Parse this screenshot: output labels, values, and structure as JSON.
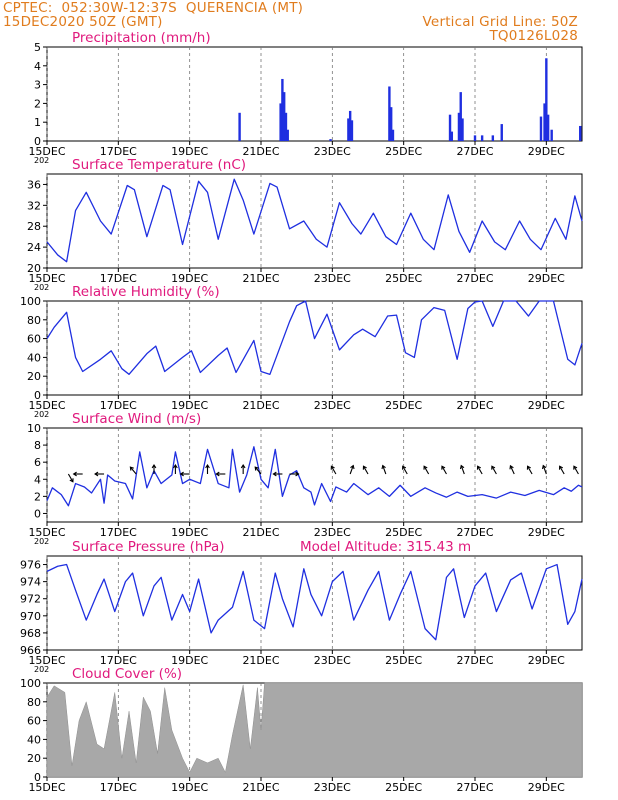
{
  "header": {
    "station": "CPTEC:  052:30W-12:37S  QUERENCIA (MT)",
    "init_time": "15DEC2020 50Z (GMT)",
    "grid_note": "Vertical Grid Line: 50Z",
    "run_id": "TQ0126L028"
  },
  "colors": {
    "header_text": "#e07c1e",
    "panel_title": "#e0197d",
    "line": "#1f2fe0",
    "precip_bar": "#1f2fe0",
    "cloud_fill": "#a8a8a8",
    "wind_arrow": "#000000"
  },
  "x_axis": {
    "tick_labels": [
      "15DEC",
      "17DEC",
      "19DEC",
      "21DEC",
      "23DEC",
      "25DEC",
      "27DEC",
      "29DEC"
    ],
    "tick_days": [
      15,
      17,
      19,
      21,
      23,
      25,
      27,
      29
    ],
    "range_days": [
      15,
      30
    ],
    "year_fragment": "202"
  },
  "chart_data": [
    {
      "type": "bar",
      "title": "Precipitation (mm/h)",
      "ylim": [
        0,
        5
      ],
      "yticks": [
        0,
        1,
        2,
        3,
        4,
        5
      ],
      "grid": "vertical-dashed",
      "points": [
        [
          20.4,
          1.5
        ],
        [
          21.55,
          2.0
        ],
        [
          21.6,
          3.3
        ],
        [
          21.65,
          2.6
        ],
        [
          21.7,
          1.5
        ],
        [
          21.75,
          0.6
        ],
        [
          22.95,
          0.1
        ],
        [
          23.45,
          1.2
        ],
        [
          23.5,
          1.6
        ],
        [
          23.55,
          1.1
        ],
        [
          24.6,
          2.9
        ],
        [
          24.65,
          1.8
        ],
        [
          24.7,
          0.6
        ],
        [
          26.3,
          1.4
        ],
        [
          26.35,
          0.5
        ],
        [
          26.55,
          1.5
        ],
        [
          26.6,
          2.6
        ],
        [
          26.65,
          1.2
        ],
        [
          27.0,
          0.3
        ],
        [
          27.2,
          0.3
        ],
        [
          27.5,
          0.3
        ],
        [
          27.75,
          0.9
        ],
        [
          28.85,
          1.3
        ],
        [
          28.95,
          2.0
        ],
        [
          29.0,
          4.4
        ],
        [
          29.05,
          1.4
        ],
        [
          29.15,
          0.6
        ],
        [
          29.95,
          0.8
        ]
      ]
    },
    {
      "type": "line",
      "title": "Surface Temperature (nC)",
      "ylim": [
        20,
        38
      ],
      "yticks": [
        20,
        24,
        28,
        32,
        36
      ],
      "points": [
        [
          15.0,
          25.0
        ],
        [
          15.3,
          22.5
        ],
        [
          15.55,
          21.2
        ],
        [
          15.8,
          31.0
        ],
        [
          16.1,
          34.5
        ],
        [
          16.5,
          29.0
        ],
        [
          16.8,
          26.5
        ],
        [
          17.25,
          35.8
        ],
        [
          17.45,
          35.0
        ],
        [
          17.8,
          26.0
        ],
        [
          18.25,
          35.8
        ],
        [
          18.45,
          35.0
        ],
        [
          18.8,
          24.5
        ],
        [
          19.25,
          36.6
        ],
        [
          19.5,
          34.5
        ],
        [
          19.8,
          25.5
        ],
        [
          20.25,
          37.0
        ],
        [
          20.5,
          33.0
        ],
        [
          20.8,
          26.5
        ],
        [
          21.25,
          36.2
        ],
        [
          21.45,
          35.5
        ],
        [
          21.8,
          27.5
        ],
        [
          22.2,
          29.0
        ],
        [
          22.55,
          25.5
        ],
        [
          22.85,
          24.0
        ],
        [
          23.2,
          32.5
        ],
        [
          23.55,
          28.5
        ],
        [
          23.8,
          26.5
        ],
        [
          24.15,
          30.5
        ],
        [
          24.5,
          26.0
        ],
        [
          24.8,
          24.5
        ],
        [
          25.2,
          30.5
        ],
        [
          25.55,
          25.5
        ],
        [
          25.85,
          23.5
        ],
        [
          26.25,
          34.0
        ],
        [
          26.55,
          27.0
        ],
        [
          26.85,
          23.0
        ],
        [
          27.2,
          29.0
        ],
        [
          27.55,
          25.0
        ],
        [
          27.85,
          23.5
        ],
        [
          28.25,
          29.0
        ],
        [
          28.55,
          25.5
        ],
        [
          28.85,
          23.5
        ],
        [
          29.25,
          29.5
        ],
        [
          29.55,
          25.5
        ],
        [
          29.8,
          33.8
        ],
        [
          30.0,
          29.0
        ]
      ]
    },
    {
      "type": "line",
      "title": "Relative Humidity (%)",
      "ylim": [
        0,
        100
      ],
      "yticks": [
        0,
        20,
        40,
        60,
        80,
        100
      ],
      "points": [
        [
          15.0,
          60.0
        ],
        [
          15.2,
          72.0
        ],
        [
          15.55,
          88.0
        ],
        [
          15.8,
          40.0
        ],
        [
          16.0,
          25.0
        ],
        [
          16.5,
          38.0
        ],
        [
          16.8,
          47.0
        ],
        [
          17.1,
          28.0
        ],
        [
          17.3,
          22.0
        ],
        [
          17.8,
          44.0
        ],
        [
          18.05,
          52.0
        ],
        [
          18.3,
          25.0
        ],
        [
          18.8,
          40.0
        ],
        [
          19.05,
          47.0
        ],
        [
          19.3,
          24.0
        ],
        [
          19.8,
          42.0
        ],
        [
          20.05,
          50.0
        ],
        [
          20.3,
          24.0
        ],
        [
          20.8,
          58.0
        ],
        [
          21.0,
          25.0
        ],
        [
          21.25,
          22.0
        ],
        [
          21.8,
          78.0
        ],
        [
          22.0,
          95.0
        ],
        [
          22.25,
          100.0
        ],
        [
          22.5,
          60.0
        ],
        [
          22.85,
          86.0
        ],
        [
          23.2,
          48.0
        ],
        [
          23.6,
          64.0
        ],
        [
          23.85,
          70.0
        ],
        [
          24.2,
          62.0
        ],
        [
          24.55,
          84.0
        ],
        [
          24.8,
          85.0
        ],
        [
          25.05,
          45.0
        ],
        [
          25.3,
          40.0
        ],
        [
          25.5,
          80.0
        ],
        [
          25.85,
          93.0
        ],
        [
          26.15,
          90.0
        ],
        [
          26.5,
          38.0
        ],
        [
          26.8,
          92.0
        ],
        [
          27.0,
          99.0
        ],
        [
          27.2,
          100.0
        ],
        [
          27.5,
          73.0
        ],
        [
          27.8,
          100.0
        ],
        [
          28.15,
          100.0
        ],
        [
          28.5,
          84.0
        ],
        [
          28.8,
          100.0
        ],
        [
          29.2,
          100.0
        ],
        [
          29.6,
          38.0
        ],
        [
          29.8,
          32.0
        ],
        [
          30.0,
          55.0
        ]
      ]
    },
    {
      "type": "line",
      "title": "Surface Wind (m/s)",
      "ylim": [
        -1,
        10
      ],
      "yticks": [
        0,
        2,
        4,
        6,
        8,
        10
      ],
      "points": [
        [
          15.0,
          1.5
        ],
        [
          15.15,
          3.0
        ],
        [
          15.4,
          2.2
        ],
        [
          15.6,
          0.9
        ],
        [
          15.8,
          3.5
        ],
        [
          16.05,
          3.1
        ],
        [
          16.25,
          2.4
        ],
        [
          16.5,
          4.0
        ],
        [
          16.6,
          1.2
        ],
        [
          16.7,
          4.5
        ],
        [
          16.9,
          3.8
        ],
        [
          17.2,
          3.5
        ],
        [
          17.4,
          1.7
        ],
        [
          17.6,
          7.2
        ],
        [
          17.8,
          3.0
        ],
        [
          18.0,
          5.0
        ],
        [
          18.2,
          3.5
        ],
        [
          18.5,
          4.5
        ],
        [
          18.6,
          7.2
        ],
        [
          18.8,
          3.5
        ],
        [
          19.0,
          4.0
        ],
        [
          19.3,
          3.5
        ],
        [
          19.5,
          7.5
        ],
        [
          19.8,
          3.5
        ],
        [
          20.1,
          3.0
        ],
        [
          20.2,
          7.5
        ],
        [
          20.4,
          2.5
        ],
        [
          20.6,
          4.5
        ],
        [
          20.8,
          7.8
        ],
        [
          21.0,
          4.0
        ],
        [
          21.2,
          3.0
        ],
        [
          21.4,
          7.5
        ],
        [
          21.6,
          2.0
        ],
        [
          21.8,
          4.5
        ],
        [
          22.0,
          5.0
        ],
        [
          22.2,
          3.0
        ],
        [
          22.4,
          2.5
        ],
        [
          22.5,
          1.0
        ],
        [
          22.7,
          3.5
        ],
        [
          22.95,
          1.4
        ],
        [
          23.1,
          3.1
        ],
        [
          23.4,
          2.5
        ],
        [
          23.6,
          3.5
        ],
        [
          24.0,
          2.2
        ],
        [
          24.3,
          3.0
        ],
        [
          24.6,
          2.0
        ],
        [
          24.9,
          3.3
        ],
        [
          25.2,
          2.0
        ],
        [
          25.6,
          3.0
        ],
        [
          25.9,
          2.4
        ],
        [
          26.2,
          1.9
        ],
        [
          26.5,
          2.5
        ],
        [
          26.8,
          2.0
        ],
        [
          27.2,
          2.2
        ],
        [
          27.6,
          1.8
        ],
        [
          28.0,
          2.5
        ],
        [
          28.4,
          2.1
        ],
        [
          28.8,
          2.7
        ],
        [
          29.2,
          2.2
        ],
        [
          29.5,
          3.0
        ],
        [
          29.7,
          2.6
        ],
        [
          29.9,
          3.3
        ],
        [
          30.0,
          3.1
        ]
      ],
      "wind_barbs": [
        [
          15.6,
          150
        ],
        [
          16.0,
          270
        ],
        [
          16.6,
          270
        ],
        [
          17.5,
          320
        ],
        [
          18.0,
          0
        ],
        [
          18.6,
          0
        ],
        [
          19.0,
          270
        ],
        [
          19.5,
          0
        ],
        [
          20.0,
          270
        ],
        [
          20.5,
          0
        ],
        [
          21.0,
          320
        ],
        [
          21.6,
          270
        ],
        [
          21.8,
          90
        ],
        [
          23.1,
          330
        ],
        [
          23.5,
          20
        ],
        [
          24.0,
          330
        ],
        [
          24.5,
          340
        ],
        [
          25.1,
          330
        ],
        [
          25.7,
          330
        ],
        [
          26.2,
          330
        ],
        [
          26.7,
          340
        ],
        [
          27.2,
          330
        ],
        [
          27.6,
          330
        ],
        [
          28.1,
          335
        ],
        [
          28.6,
          330
        ],
        [
          29.0,
          340
        ],
        [
          29.5,
          330
        ],
        [
          29.9,
          330
        ]
      ]
    },
    {
      "type": "line",
      "title": "Surface Pressure (hPa)",
      "annotation": "Model Altitude: 315.43 m",
      "ylim": [
        966,
        977
      ],
      "yticks": [
        966,
        968,
        970,
        972,
        974,
        976
      ],
      "points": [
        [
          15.0,
          975.2
        ],
        [
          15.3,
          975.8
        ],
        [
          15.55,
          976.0
        ],
        [
          15.8,
          973.0
        ],
        [
          16.1,
          969.5
        ],
        [
          16.4,
          972.5
        ],
        [
          16.6,
          974.3
        ],
        [
          16.9,
          970.5
        ],
        [
          17.2,
          974.0
        ],
        [
          17.4,
          975.0
        ],
        [
          17.7,
          970.0
        ],
        [
          18.0,
          973.5
        ],
        [
          18.2,
          974.5
        ],
        [
          18.5,
          969.5
        ],
        [
          18.8,
          972.5
        ],
        [
          19.0,
          970.5
        ],
        [
          19.25,
          974.3
        ],
        [
          19.6,
          968.0
        ],
        [
          19.8,
          969.5
        ],
        [
          20.2,
          971.0
        ],
        [
          20.5,
          975.2
        ],
        [
          20.8,
          969.5
        ],
        [
          21.1,
          968.5
        ],
        [
          21.4,
          975.0
        ],
        [
          21.6,
          972.0
        ],
        [
          21.9,
          968.7
        ],
        [
          22.2,
          975.5
        ],
        [
          22.4,
          972.5
        ],
        [
          22.7,
          970.0
        ],
        [
          23.0,
          974.0
        ],
        [
          23.3,
          975.2
        ],
        [
          23.6,
          969.5
        ],
        [
          24.0,
          973.0
        ],
        [
          24.3,
          975.2
        ],
        [
          24.6,
          969.5
        ],
        [
          24.9,
          972.5
        ],
        [
          25.2,
          975.2
        ],
        [
          25.6,
          968.5
        ],
        [
          25.9,
          967.2
        ],
        [
          26.2,
          974.5
        ],
        [
          26.4,
          975.5
        ],
        [
          26.7,
          969.8
        ],
        [
          27.0,
          973.5
        ],
        [
          27.3,
          975.0
        ],
        [
          27.6,
          970.5
        ],
        [
          28.0,
          974.2
        ],
        [
          28.3,
          975.0
        ],
        [
          28.6,
          970.8
        ],
        [
          29.0,
          975.5
        ],
        [
          29.3,
          976.0
        ],
        [
          29.6,
          969.0
        ],
        [
          29.8,
          970.5
        ],
        [
          30.0,
          974.3
        ]
      ]
    },
    {
      "type": "area",
      "title": "Cloud Cover (%)",
      "ylim": [
        0,
        100
      ],
      "yticks": [
        0,
        20,
        40,
        60,
        80,
        100
      ],
      "points": [
        [
          15.0,
          85.0
        ],
        [
          15.2,
          97.0
        ],
        [
          15.5,
          90.0
        ],
        [
          15.7,
          12.0
        ],
        [
          15.9,
          60.0
        ],
        [
          16.1,
          80.0
        ],
        [
          16.4,
          35.0
        ],
        [
          16.6,
          30.0
        ],
        [
          16.9,
          90.0
        ],
        [
          17.1,
          20.0
        ],
        [
          17.3,
          70.0
        ],
        [
          17.5,
          15.0
        ],
        [
          17.7,
          85.0
        ],
        [
          17.9,
          70.0
        ],
        [
          18.1,
          25.0
        ],
        [
          18.3,
          95.0
        ],
        [
          18.5,
          50.0
        ],
        [
          18.8,
          20.0
        ],
        [
          19.0,
          5.0
        ],
        [
          19.2,
          20.0
        ],
        [
          19.5,
          15.0
        ],
        [
          19.8,
          20.0
        ],
        [
          20.0,
          5.0
        ],
        [
          20.2,
          45.0
        ],
        [
          20.5,
          98.0
        ],
        [
          20.7,
          30.0
        ],
        [
          20.9,
          95.0
        ],
        [
          21.0,
          50.0
        ],
        [
          21.1,
          100.0
        ],
        [
          30.0,
          100.0
        ]
      ]
    }
  ]
}
